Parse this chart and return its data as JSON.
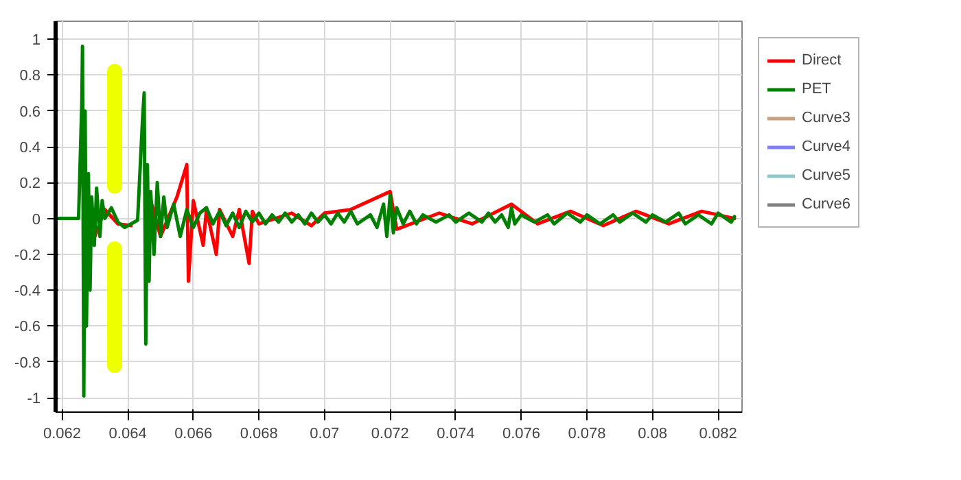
{
  "chart_data": {
    "type": "line",
    "xlim": [
      0.0618,
      0.08273
    ],
    "ylim": [
      -1.08,
      1.1
    ],
    "xticks": [
      0.062,
      0.064,
      0.066,
      0.068,
      0.07,
      0.072,
      0.074,
      0.076,
      0.078,
      0.08,
      0.082
    ],
    "yticks": [
      -1,
      -0.8,
      -0.6,
      -0.4,
      -0.2,
      0,
      0.2,
      0.4,
      0.6,
      0.8,
      1
    ],
    "grid": true,
    "legend": "right",
    "line_style": "solid",
    "series": [
      {
        "name": "Direct",
        "color": "#ff0000",
        "x": [
          0.063,
          0.0633,
          0.0637,
          0.0641,
          0.06445,
          0.06455,
          0.0647,
          0.065,
          0.0655,
          0.0658,
          0.06585,
          0.066,
          0.0663,
          0.0664,
          0.0667,
          0.0668,
          0.0672,
          0.0674,
          0.0677,
          0.0678,
          0.068,
          0.069,
          0.0696,
          0.07,
          0.0708,
          0.072,
          0.0722,
          0.0735,
          0.0745,
          0.0757,
          0.0765,
          0.0775,
          0.0785,
          0.0795,
          0.0805,
          0.0815,
          0.0825
        ],
        "values": [
          -0.1,
          0.05,
          -0.03,
          -0.04,
          null,
          null,
          0.1,
          -0.1,
          0.12,
          0.3,
          -0.35,
          0.1,
          -0.15,
          0.05,
          -0.2,
          0.05,
          -0.1,
          0.05,
          -0.25,
          0.04,
          -0.03,
          0.03,
          -0.04,
          0.03,
          0.05,
          0.15,
          -0.06,
          0.03,
          -0.03,
          0.08,
          -0.03,
          0.04,
          -0.04,
          0.04,
          -0.03,
          0.04,
          0
        ]
      },
      {
        "name": "PET",
        "color": "#008000",
        "x": [
          0.0618,
          0.0625,
          0.0626,
          0.06262,
          0.06266,
          0.0627,
          0.06274,
          0.0628,
          0.06285,
          0.0629,
          0.06298,
          0.06305,
          0.06315,
          0.06322,
          0.0633,
          0.0635,
          0.0637,
          0.0639,
          0.0641,
          0.0643,
          0.06445,
          0.0645,
          0.06455,
          0.0646,
          0.06465,
          0.0647,
          0.0648,
          0.0649,
          0.065,
          0.0651,
          0.0652,
          0.0654,
          0.0656,
          0.0658,
          0.066,
          0.0662,
          0.0664,
          0.0666,
          0.0668,
          0.067,
          0.0672,
          0.0674,
          0.0676,
          0.0678,
          0.068,
          0.0682,
          0.0684,
          0.0686,
          0.0688,
          0.069,
          0.0692,
          0.0694,
          0.0696,
          0.0698,
          0.07,
          0.0702,
          0.0704,
          0.0706,
          0.0708,
          0.071,
          0.0714,
          0.0716,
          0.0718,
          0.0719,
          0.072,
          0.0721,
          0.0722,
          0.0724,
          0.0726,
          0.0728,
          0.073,
          0.0734,
          0.0738,
          0.074,
          0.0744,
          0.0748,
          0.075,
          0.0752,
          0.0754,
          0.0756,
          0.0757,
          0.0758,
          0.076,
          0.0764,
          0.0768,
          0.077,
          0.0774,
          0.0778,
          0.078,
          0.0784,
          0.0788,
          0.079,
          0.0794,
          0.0798,
          0.08,
          0.0804,
          0.0808,
          0.081,
          0.0814,
          0.0818,
          0.082,
          0.0824,
          0.0825
        ],
        "values": [
          0,
          0,
          0.65,
          0.96,
          -0.99,
          0.6,
          -0.6,
          0.25,
          -0.4,
          0.12,
          -0.15,
          0.17,
          -0.1,
          0.1,
          0,
          0.06,
          -0.02,
          -0.05,
          -0.03,
          -0.01,
          0.55,
          0.7,
          -0.7,
          0.3,
          -0.35,
          0.15,
          -0.2,
          0.2,
          -0.1,
          0.12,
          -0.05,
          0.08,
          -0.1,
          0.05,
          -0.05,
          0.03,
          0.06,
          -0.03,
          0.04,
          -0.04,
          0.03,
          -0.05,
          0.04,
          -0.02,
          0.03,
          -0.03,
          0.02,
          -0.02,
          0.03,
          -0.02,
          0.02,
          -0.03,
          0.03,
          -0.02,
          0.02,
          -0.03,
          0.03,
          -0.02,
          0.04,
          -0.03,
          0.02,
          -0.05,
          0.08,
          -0.1,
          0.13,
          -0.08,
          0.06,
          -0.03,
          0.04,
          -0.03,
          0.02,
          -0.02,
          0.02,
          -0.02,
          0.03,
          -0.02,
          0.03,
          -0.02,
          0.02,
          -0.05,
          0.06,
          -0.03,
          0.02,
          -0.02,
          0.02,
          -0.03,
          0.03,
          -0.02,
          0.02,
          -0.03,
          0.02,
          -0.02,
          0.03,
          -0.02,
          0.02,
          -0.02,
          0.03,
          -0.03,
          0.02,
          -0.03,
          0.03,
          -0.02,
          0.01
        ]
      },
      {
        "name": "Curve3",
        "color": "#c8a080"
      },
      {
        "name": "Curve4",
        "color": "#8080ff"
      },
      {
        "name": "Curve5",
        "color": "#90c8c8"
      },
      {
        "name": "Curve6",
        "color": "#808080"
      },
      {
        "color": "#eeff00",
        "x": [
          0.0636,
          0.0636
        ],
        "values": [
          0.82,
          0.18
        ]
      },
      {
        "color": "#eeff00",
        "x": [
          0.0636,
          0.0636
        ],
        "values": [
          -0.17,
          -0.82
        ]
      }
    ]
  }
}
